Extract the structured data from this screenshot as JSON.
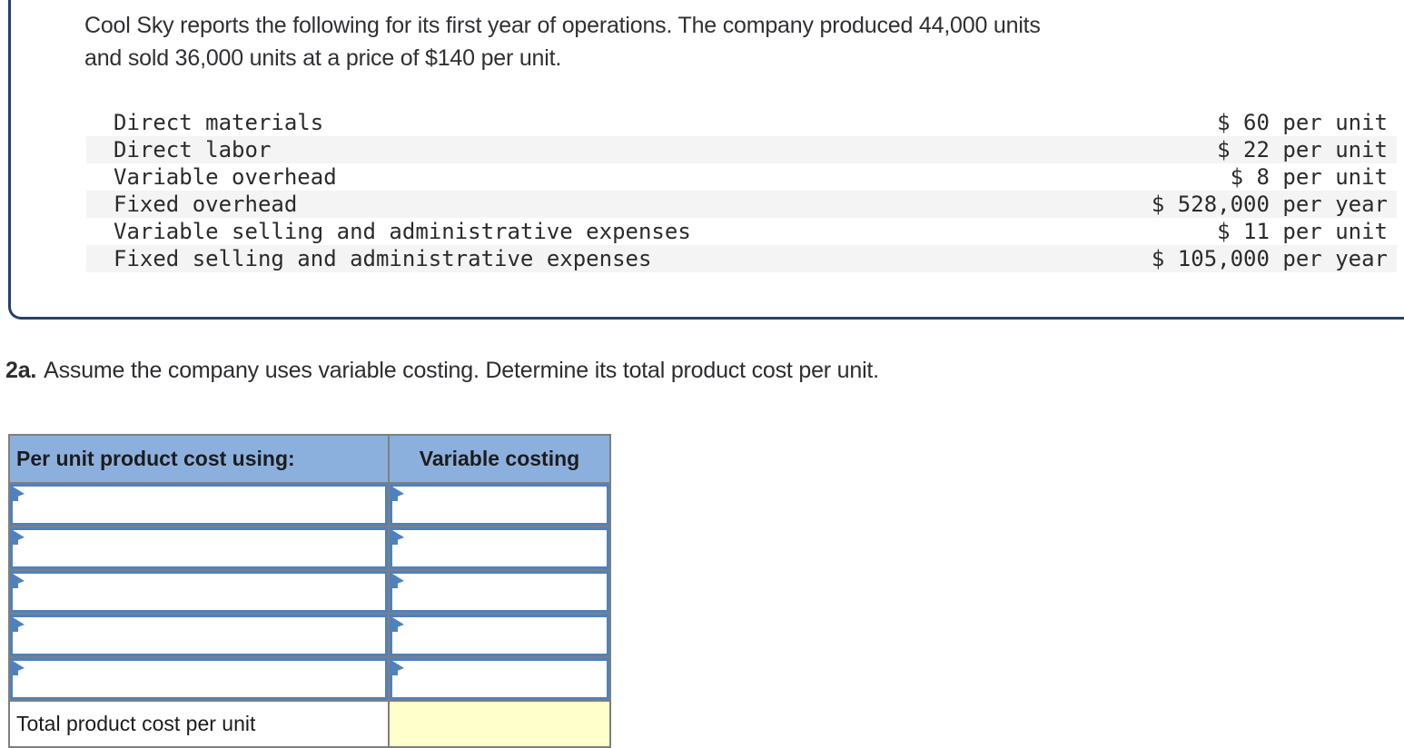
{
  "problem_panel": {
    "lines": [
      "Cool Sky reports the following for its first year of operations. The company produced 44,000 units",
      "and sold 36,000 units at a price of $140 per unit."
    ],
    "cost_rows": [
      {
        "label": "Direct materials",
        "value": "$ 60 per unit"
      },
      {
        "label": "Direct labor",
        "value": "$ 22 per unit"
      },
      {
        "label": "Variable overhead",
        "value": "$ 8 per unit"
      },
      {
        "label": "Fixed overhead",
        "value": "$ 528,000 per year"
      },
      {
        "label": "Variable selling and administrative expenses",
        "value": "$ 11 per unit"
      },
      {
        "label": "Fixed selling and administrative expenses",
        "value": "$ 105,000 per year"
      }
    ]
  },
  "question": {
    "number": "2a.",
    "text": "Assume the company uses variable costing. Determine its total product cost per unit."
  },
  "worksheet": {
    "header": {
      "col1": "Per unit product cost using:",
      "col2": "Variable costing"
    },
    "input_row_count": 5,
    "input_cell_values": [
      "",
      "",
      "",
      "",
      "",
      "",
      "",
      "",
      "",
      ""
    ],
    "total_row": {
      "label": "Total product cost per unit",
      "value": ""
    },
    "icons": {
      "input_marker": "input-marker-icon"
    }
  },
  "colors": {
    "panel_border": "#24426b",
    "worksheet_header_bg": "#8cb0de",
    "input_cell_border": "#4f81bd",
    "grid_border": "#7f7f7f",
    "calculated_cell_bg": "#ffffcc",
    "striped_row_bg": "#f4f4f5"
  }
}
